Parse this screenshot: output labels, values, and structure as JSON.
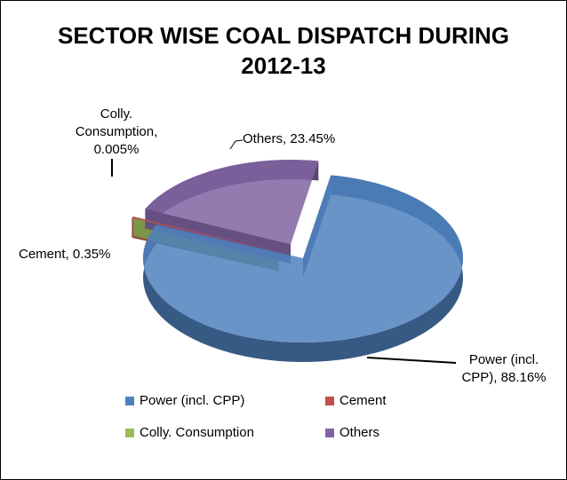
{
  "chart_data": {
    "type": "pie3d",
    "title": "SECTOR WISE COAL DISPATCH DURING 2012-13",
    "categories": [
      "Power (incl. CPP)",
      "Cement",
      "Colly. Consumption",
      "Others"
    ],
    "values": [
      88.16,
      0.35,
      0.005,
      23.45
    ],
    "value_labels": [
      "Power (incl. CPP), 88.16%",
      "Cement, 0.35%",
      "Colly. Consumption, 0.005%",
      "Others, 23.45%"
    ],
    "colors": [
      "#4f81bd",
      "#c0504d",
      "#9bbb59",
      "#8064a2"
    ],
    "legend": "bottom"
  }
}
